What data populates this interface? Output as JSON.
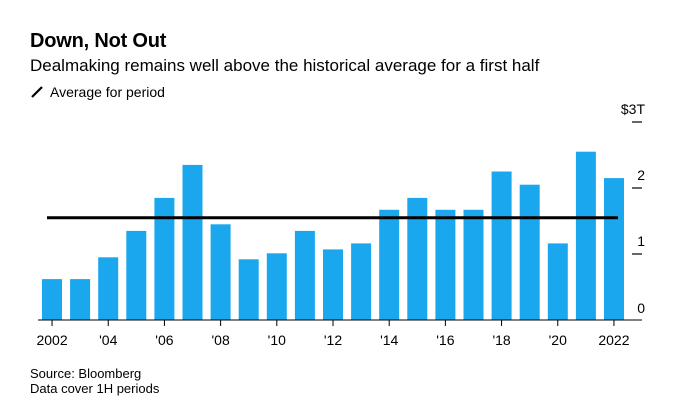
{
  "header": {
    "title": "Down, Not Out",
    "subtitle": "Dealmaking remains well above the historical average for a first half",
    "legend_label": "Average for period"
  },
  "footer": {
    "source": "Source: Bloomberg",
    "note": "Data cover 1H periods"
  },
  "colors": {
    "bar": "#1aa7ee",
    "average_line": "#000000",
    "axis": "#000000"
  },
  "chart_data": {
    "type": "bar",
    "title": "Down, Not Out",
    "subtitle": "Dealmaking remains well above the historical average for a first half",
    "categories": [
      "2002",
      "2003",
      "2004",
      "2005",
      "2006",
      "2007",
      "2008",
      "2009",
      "2010",
      "2011",
      "2012",
      "2013",
      "2014",
      "2015",
      "2016",
      "2017",
      "2018",
      "2019",
      "2020",
      "2021",
      "2022"
    ],
    "x_tick_labels": [
      "2002",
      "'04",
      "'06",
      "'08",
      "'10",
      "'12",
      "'14",
      "'16",
      "'18",
      "'20",
      "2022"
    ],
    "x_tick_years": [
      "2002",
      "2004",
      "2006",
      "2008",
      "2010",
      "2012",
      "2014",
      "2016",
      "2018",
      "2020",
      "2022"
    ],
    "series": [
      {
        "values": [
          0.62,
          0.62,
          0.95,
          1.35,
          1.85,
          2.35,
          1.45,
          0.92,
          1.01,
          1.35,
          1.07,
          1.16,
          1.67,
          1.85,
          1.67,
          1.67,
          2.25,
          2.05,
          1.16,
          2.55,
          2.15
        ]
      }
    ],
    "average": {
      "label": "Average for period",
      "value": 1.55
    },
    "y_ticks": [
      {
        "value": 0,
        "label": "0"
      },
      {
        "value": 1,
        "label": "1"
      },
      {
        "value": 2,
        "label": "2"
      },
      {
        "value": 3,
        "label": "$3T"
      }
    ],
    "ylim": [
      0,
      3
    ],
    "xlabel": "",
    "ylabel": "",
    "grid": false,
    "legend_position": "top-left"
  }
}
